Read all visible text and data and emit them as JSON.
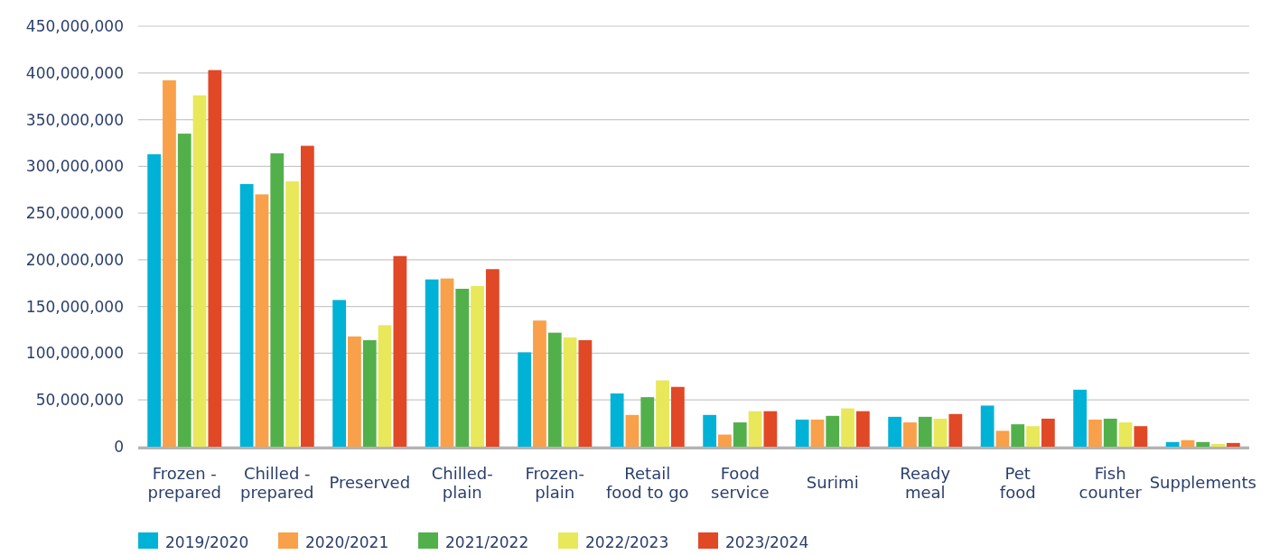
{
  "chart_data": {
    "type": "bar",
    "categories": [
      "Frozen - prepared",
      "Chilled - prepared",
      "Preserved",
      "Chilled-plain",
      "Frozen-plain",
      "Retail food to go",
      "Food service",
      "Surimi",
      "Ready meal",
      "Pet food",
      "Fish counter",
      "Supplements"
    ],
    "series": [
      {
        "name": "2019/2020",
        "color": "#00b2d6",
        "values": [
          313000000,
          281000000,
          157000000,
          179000000,
          101000000,
          57000000,
          34000000,
          29000000,
          32000000,
          44000000,
          61000000,
          5000000
        ]
      },
      {
        "name": "2020/2021",
        "color": "#f9a04a",
        "values": [
          392000000,
          270000000,
          118000000,
          180000000,
          135000000,
          34000000,
          13000000,
          29000000,
          26000000,
          17000000,
          29000000,
          7000000
        ]
      },
      {
        "name": "2021/2022",
        "color": "#52b04b",
        "values": [
          335000000,
          314000000,
          114000000,
          169000000,
          122000000,
          53000000,
          26000000,
          33000000,
          32000000,
          24000000,
          30000000,
          5000000
        ]
      },
      {
        "name": "2022/2023",
        "color": "#e8e85a",
        "values": [
          376000000,
          284000000,
          130000000,
          172000000,
          117000000,
          71000000,
          38000000,
          41000000,
          30000000,
          22000000,
          26000000,
          3000000
        ]
      },
      {
        "name": "2023/2024",
        "color": "#e04826",
        "values": [
          403000000,
          322000000,
          204000000,
          190000000,
          114000000,
          64000000,
          38000000,
          38000000,
          35000000,
          30000000,
          22000000,
          4000000
        ]
      }
    ],
    "ylim": [
      0,
      450000000
    ],
    "yticks": [
      {
        "value": 0,
        "label": "0"
      },
      {
        "value": 50000000,
        "label": "50,000,000"
      },
      {
        "value": 100000000,
        "label": "100,000,000"
      },
      {
        "value": 150000000,
        "label": "150,000,000"
      },
      {
        "value": 200000000,
        "label": "200,000,000"
      },
      {
        "value": 250000000,
        "label": "250,000,000"
      },
      {
        "value": 300000000,
        "label": "300,000,000"
      },
      {
        "value": 350000000,
        "label": "350,000,000"
      },
      {
        "value": 400000000,
        "label": "400,000,000"
      },
      {
        "value": 450000000,
        "label": "450,000,000"
      }
    ],
    "grid": "y",
    "legend": "bottom left"
  }
}
